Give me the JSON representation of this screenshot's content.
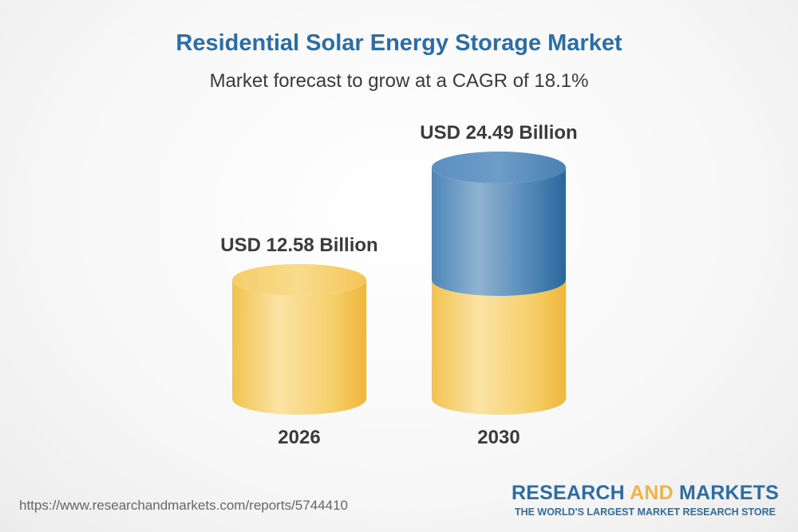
{
  "title": "Residential Solar Energy Storage Market",
  "subtitle": "Market forecast to grow at a CAGR of 18.1%",
  "chart_data": {
    "type": "bar",
    "categories": [
      "2026",
      "2030"
    ],
    "values": [
      12.58,
      24.49
    ],
    "value_labels": [
      "USD 12.58 Billion",
      "USD 24.49 Billion"
    ],
    "unit": "USD Billion",
    "cagr": "18.1%",
    "colors": {
      "base": "#f2c04e",
      "growth": "#2e6da4"
    }
  },
  "footer": {
    "source_url": "https://www.researchandmarkets.com/reports/5744410",
    "logo_research": "RESEARCH",
    "logo_and": "AND",
    "logo_markets": "MARKETS",
    "logo_tagline": "THE WORLD'S LARGEST MARKET RESEARCH STORE"
  }
}
